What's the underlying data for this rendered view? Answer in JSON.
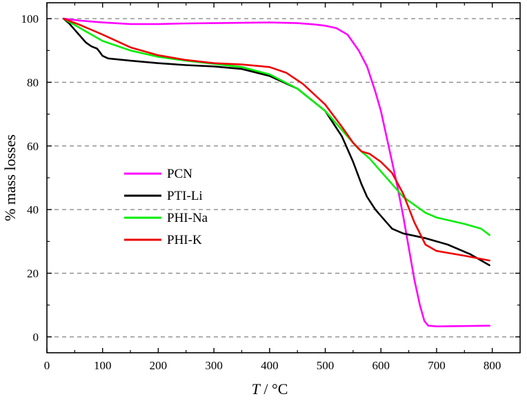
{
  "chart_data": {
    "type": "line",
    "xlabel_italic": "T",
    "xlabel_rest": " / °C",
    "ylabel": "% mass losses",
    "xlim": [
      0,
      850
    ],
    "ylim": [
      -5,
      105
    ],
    "xticks": [
      0,
      100,
      200,
      300,
      400,
      500,
      600,
      700,
      800
    ],
    "yticks": [
      0,
      20,
      40,
      60,
      80,
      100
    ],
    "grid": "horizontal-dashed",
    "legend_position": "center-left",
    "series": [
      {
        "name": "PCN",
        "color": "#ff00ff",
        "points": [
          [
            30,
            100
          ],
          [
            60,
            99.4
          ],
          [
            100,
            98.8
          ],
          [
            150,
            98.3
          ],
          [
            200,
            98.3
          ],
          [
            250,
            98.5
          ],
          [
            300,
            98.6
          ],
          [
            350,
            98.7
          ],
          [
            400,
            98.8
          ],
          [
            450,
            98.6
          ],
          [
            480,
            98.2
          ],
          [
            500,
            97.8
          ],
          [
            520,
            97.0
          ],
          [
            540,
            95.0
          ],
          [
            560,
            90.0
          ],
          [
            575,
            85.0
          ],
          [
            590,
            77.0
          ],
          [
            600,
            71.0
          ],
          [
            610,
            63.0
          ],
          [
            620,
            55.0
          ],
          [
            630,
            47.0
          ],
          [
            640,
            38.0
          ],
          [
            650,
            28.0
          ],
          [
            660,
            18.0
          ],
          [
            670,
            10.0
          ],
          [
            678,
            5.0
          ],
          [
            685,
            3.5
          ],
          [
            700,
            3.3
          ],
          [
            750,
            3.4
          ],
          [
            795,
            3.5
          ]
        ]
      },
      {
        "name": "PTI-Li",
        "color": "#000000",
        "points": [
          [
            30,
            100
          ],
          [
            40,
            98.5
          ],
          [
            50,
            96.5
          ],
          [
            60,
            94.5
          ],
          [
            70,
            92.5
          ],
          [
            80,
            91.3
          ],
          [
            90,
            90.6
          ],
          [
            95,
            89.5
          ],
          [
            100,
            88.3
          ],
          [
            110,
            87.5
          ],
          [
            150,
            86.8
          ],
          [
            200,
            86.0
          ],
          [
            250,
            85.4
          ],
          [
            300,
            85.0
          ],
          [
            350,
            84.2
          ],
          [
            400,
            82.0
          ],
          [
            450,
            78.0
          ],
          [
            500,
            71.0
          ],
          [
            530,
            63.0
          ],
          [
            550,
            55.0
          ],
          [
            565,
            48.0
          ],
          [
            575,
            44.0
          ],
          [
            590,
            40.0
          ],
          [
            610,
            36.0
          ],
          [
            620,
            34.0
          ],
          [
            640,
            32.5
          ],
          [
            680,
            31.0
          ],
          [
            720,
            29.0
          ],
          [
            760,
            26.0
          ],
          [
            795,
            22.5
          ]
        ]
      },
      {
        "name": "PHI-Na",
        "color": "#00ee00",
        "points": [
          [
            30,
            100
          ],
          [
            50,
            98.0
          ],
          [
            70,
            96.0
          ],
          [
            100,
            93.0
          ],
          [
            150,
            90.0
          ],
          [
            200,
            88.0
          ],
          [
            250,
            86.8
          ],
          [
            300,
            85.8
          ],
          [
            350,
            84.8
          ],
          [
            400,
            82.5
          ],
          [
            450,
            78.0
          ],
          [
            500,
            71.0
          ],
          [
            530,
            65.0
          ],
          [
            560,
            59.0
          ],
          [
            580,
            56.0
          ],
          [
            600,
            52.0
          ],
          [
            620,
            48.0
          ],
          [
            640,
            44.0
          ],
          [
            660,
            41.5
          ],
          [
            680,
            39.0
          ],
          [
            700,
            37.5
          ],
          [
            750,
            35.5
          ],
          [
            780,
            34.0
          ],
          [
            795,
            32.0
          ]
        ]
      },
      {
        "name": "PHI-K",
        "color": "#ee0000",
        "points": [
          [
            30,
            100
          ],
          [
            60,
            98.0
          ],
          [
            100,
            95.0
          ],
          [
            150,
            91.0
          ],
          [
            200,
            88.5
          ],
          [
            250,
            87.0
          ],
          [
            300,
            86.0
          ],
          [
            350,
            85.6
          ],
          [
            400,
            84.8
          ],
          [
            430,
            83.0
          ],
          [
            460,
            79.5
          ],
          [
            500,
            73.0
          ],
          [
            530,
            66.0
          ],
          [
            550,
            61.0
          ],
          [
            565,
            58.3
          ],
          [
            580,
            57.5
          ],
          [
            600,
            55.0
          ],
          [
            620,
            51.5
          ],
          [
            640,
            45.0
          ],
          [
            660,
            36.0
          ],
          [
            680,
            29.0
          ],
          [
            700,
            27.0
          ],
          [
            750,
            25.5
          ],
          [
            795,
            24.0
          ]
        ]
      }
    ]
  }
}
